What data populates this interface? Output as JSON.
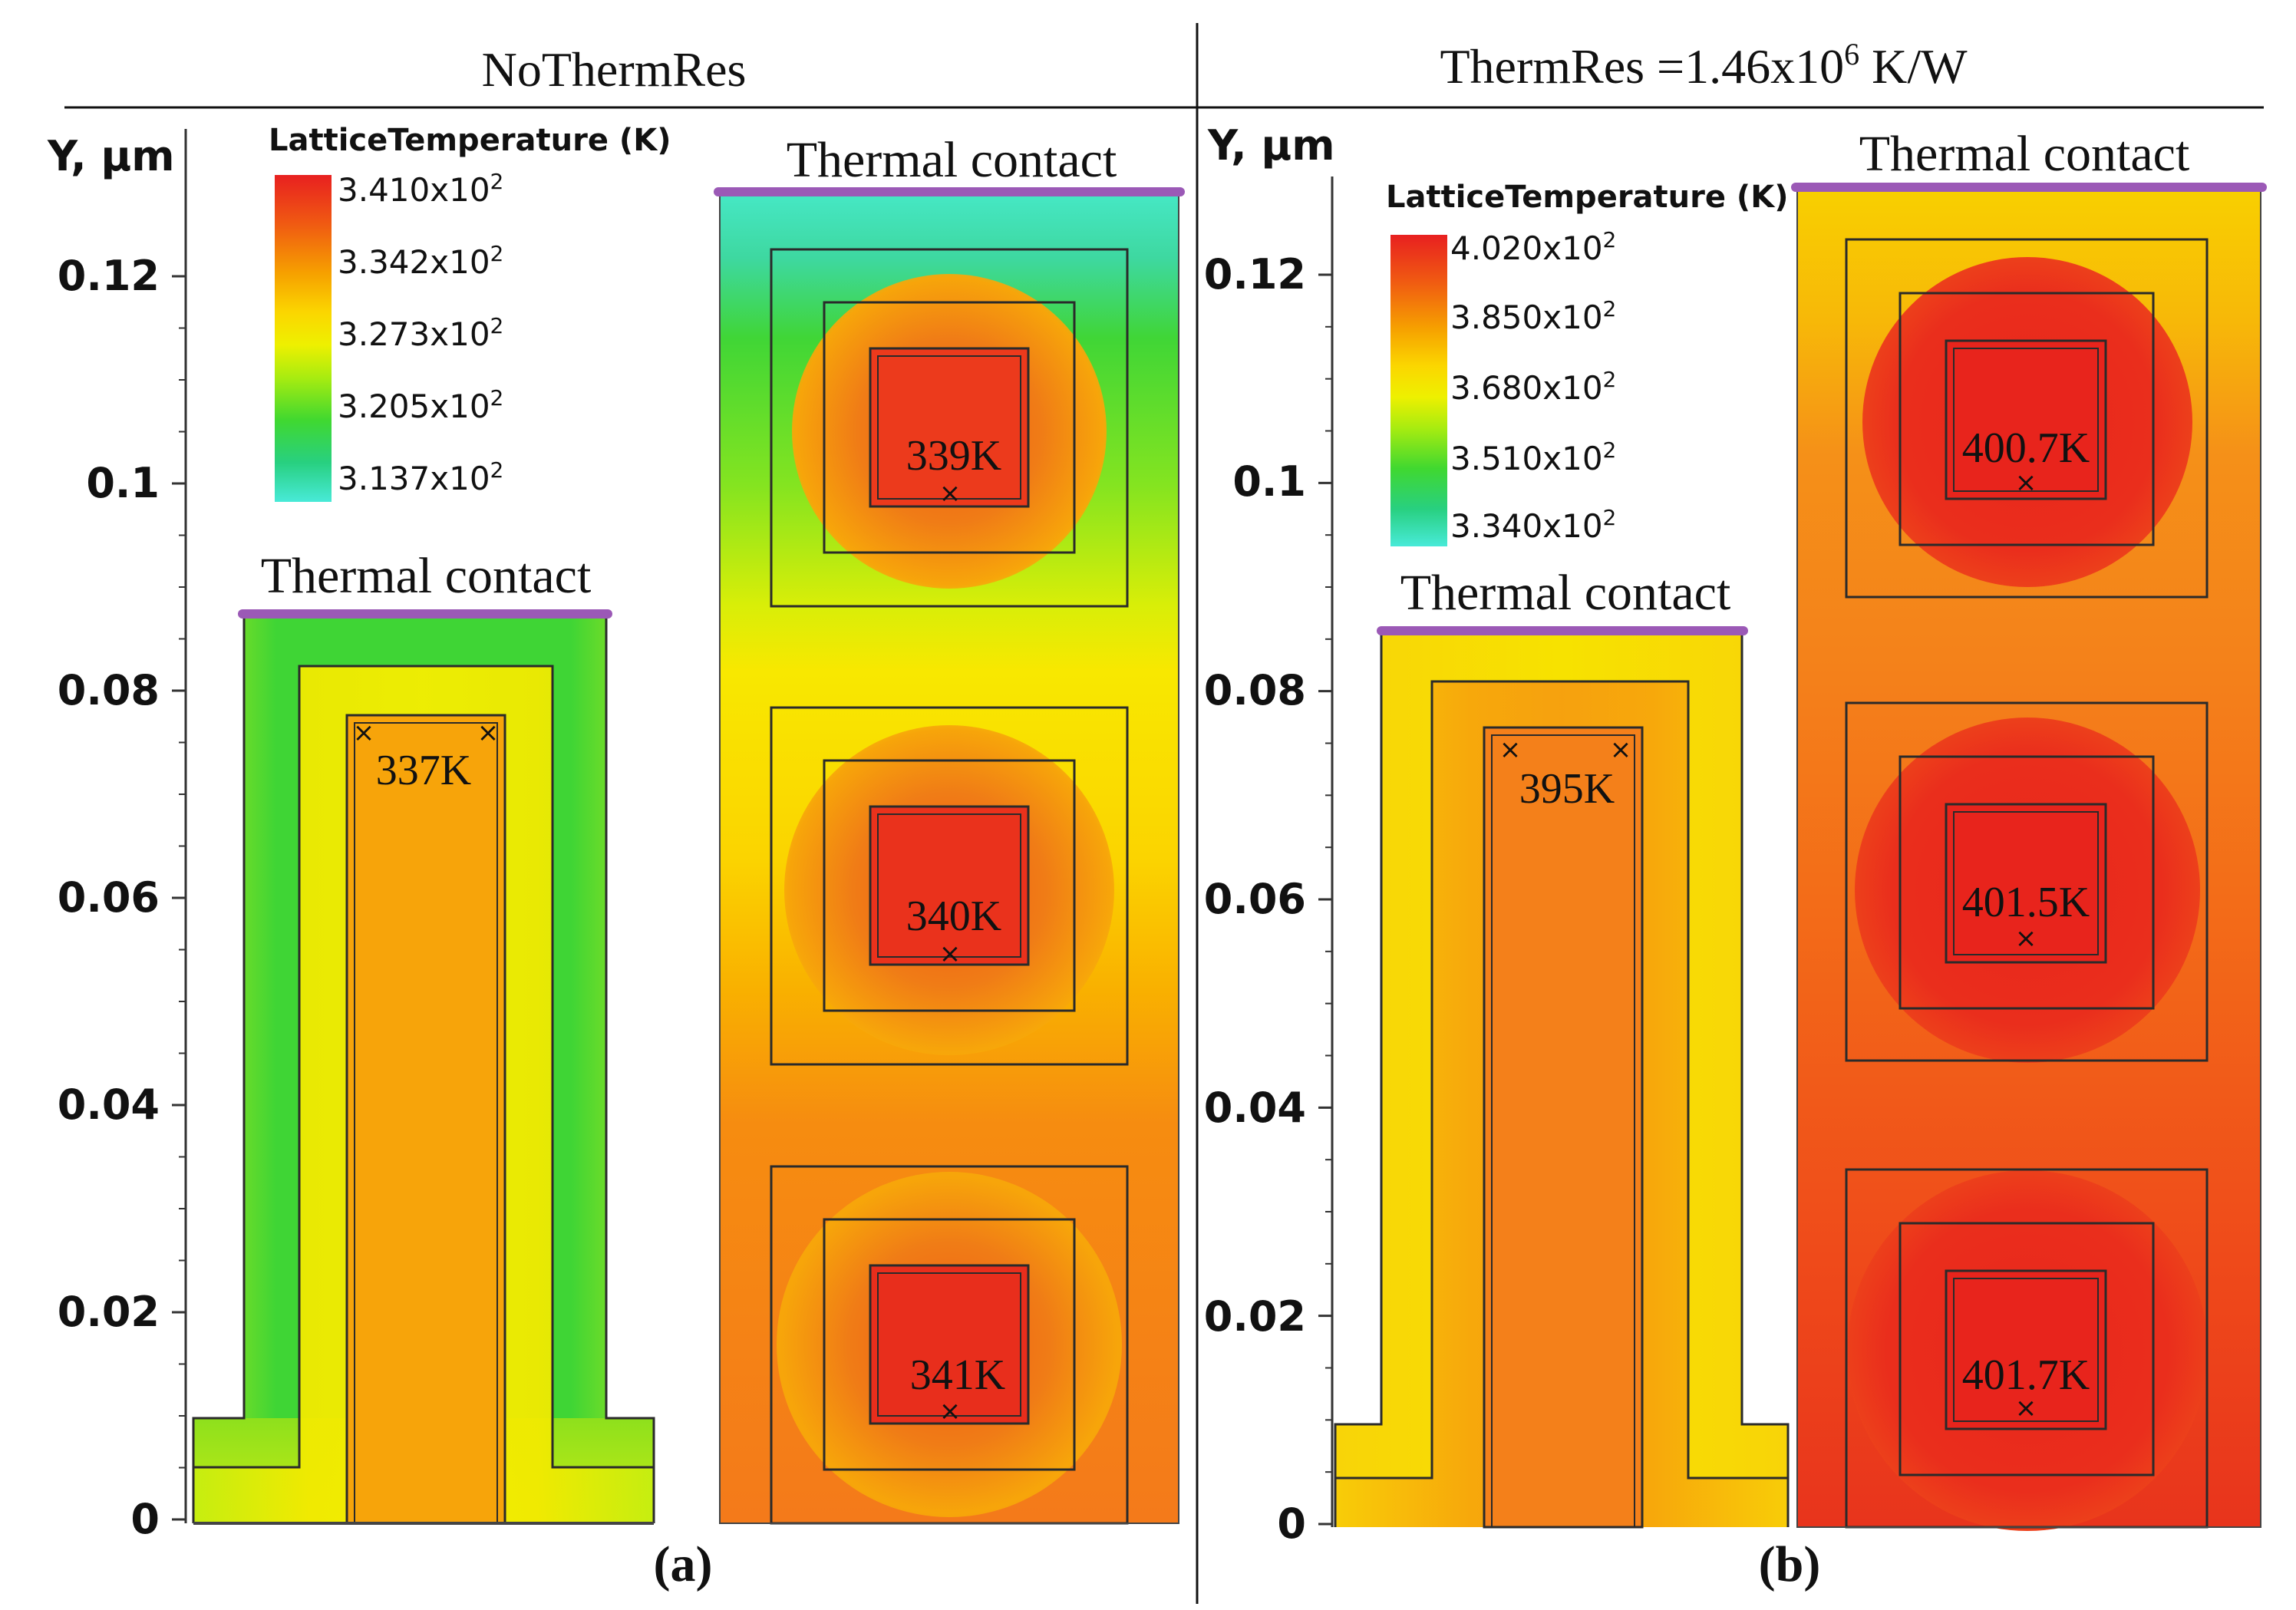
{
  "header": {
    "left_title": "NoThermRes",
    "right_title_prefix": "ThermRes =1.46x10",
    "right_title_exp": "6",
    "right_title_suffix": " K/W"
  },
  "panels": [
    {
      "id": "a",
      "label": "(a)",
      "y_axis": {
        "label": "Y, μm",
        "ticks": [
          "0.12",
          "0.1",
          "0.08",
          "0.06",
          "0.04",
          "0.02",
          "0"
        ],
        "range": [
          0,
          0.13
        ]
      },
      "legend": {
        "title": "LatticeTemperature (K)",
        "entries": [
          {
            "mantissa": "3.410x10",
            "exp": "2"
          },
          {
            "mantissa": "3.342x10",
            "exp": "2"
          },
          {
            "mantissa": "3.273x10",
            "exp": "2"
          },
          {
            "mantissa": "3.205x10",
            "exp": "2"
          },
          {
            "mantissa": "3.137x10",
            "exp": "2"
          }
        ],
        "colors": [
          "#e8201e",
          "#f06010",
          "#f6a000",
          "#fbd200",
          "#eef000",
          "#a8ec10",
          "#40d830",
          "#22ce7a",
          "#44e8d4"
        ]
      },
      "devices": [
        {
          "name": "fin",
          "contact_label": "Thermal contact",
          "temps": [
            "337K"
          ]
        },
        {
          "name": "stack",
          "contact_label": "Thermal contact",
          "temps": [
            "339K",
            "340K",
            "341K"
          ]
        }
      ]
    },
    {
      "id": "b",
      "label": "(b)",
      "y_axis": {
        "label": "Y, μm",
        "ticks": [
          "0.12",
          "0.1",
          "0.08",
          "0.06",
          "0.04",
          "0.02",
          "0"
        ],
        "range": [
          0,
          0.13
        ]
      },
      "legend": {
        "title": "LatticeTemperature (K)",
        "entries": [
          {
            "mantissa": "4.020x10",
            "exp": "2"
          },
          {
            "mantissa": "3.850x10",
            "exp": "2"
          },
          {
            "mantissa": "3.680x10",
            "exp": "2"
          },
          {
            "mantissa": "3.510x10",
            "exp": "2"
          },
          {
            "mantissa": "3.340x10",
            "exp": "2"
          }
        ],
        "colors": [
          "#e8201e",
          "#f06010",
          "#f6a000",
          "#fbd200",
          "#eef000",
          "#a8ec10",
          "#40d830",
          "#22ce7a",
          "#44e8d4"
        ]
      },
      "devices": [
        {
          "name": "fin",
          "contact_label": "Thermal contact",
          "temps": [
            "395K"
          ]
        },
        {
          "name": "stack",
          "contact_label": "Thermal contact",
          "temps": [
            "400.7K",
            "401.5K",
            "401.7K"
          ]
        }
      ]
    }
  ],
  "colors": {
    "contact": "#9b59b6",
    "outline": "#2a2a2a",
    "red": "#e8241c",
    "orange": "#f4791a",
    "orange_light": "#f69a12",
    "amber": "#fbb400",
    "yellow": "#f8e800",
    "lime": "#b8ec10",
    "green": "#3ed830",
    "cyan": "#3ee8b8"
  }
}
